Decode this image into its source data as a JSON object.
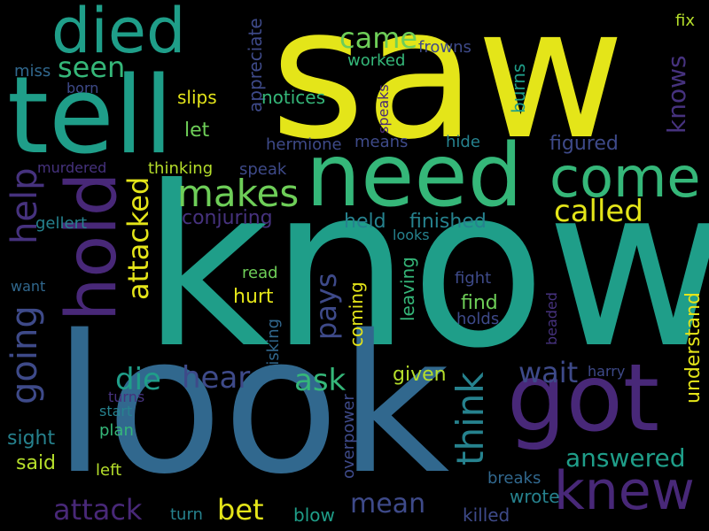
{
  "palette": {
    "yellow": "#e4e519",
    "teal": "#1f9e89",
    "green": "#35b779",
    "lime": "#6ece58",
    "lightgreen": "#b5de2b",
    "blue": "#31688e",
    "steel": "#3e4a89",
    "purple": "#482878",
    "violet": "#46327e",
    "cyan": "#26828e"
  },
  "words": [
    {
      "text": "saw",
      "color": "yellow"
    },
    {
      "text": "know",
      "color": "teal"
    },
    {
      "text": "look",
      "color": "blue"
    },
    {
      "text": "tell",
      "color": "teal"
    },
    {
      "text": "need",
      "color": "green"
    },
    {
      "text": "got",
      "color": "purple"
    },
    {
      "text": "died",
      "color": "teal"
    },
    {
      "text": "come",
      "color": "green"
    },
    {
      "text": "knew",
      "color": "purple"
    },
    {
      "text": "hold",
      "color": "purple"
    },
    {
      "text": "makes",
      "color": "lime"
    },
    {
      "text": "going",
      "color": "steel"
    },
    {
      "text": "help",
      "color": "violet"
    },
    {
      "text": "think",
      "color": "cyan"
    },
    {
      "text": "called",
      "color": "yellow"
    },
    {
      "text": "attacked",
      "color": "yellow"
    },
    {
      "text": "came",
      "color": "lime"
    },
    {
      "text": "seen",
      "color": "green"
    },
    {
      "text": "pays",
      "color": "steel"
    },
    {
      "text": "die",
      "color": "teal"
    },
    {
      "text": "hear",
      "color": "steel"
    },
    {
      "text": "ask",
      "color": "green"
    },
    {
      "text": "wait",
      "color": "steel"
    },
    {
      "text": "attack",
      "color": "purple"
    },
    {
      "text": "bet",
      "color": "yellow"
    },
    {
      "text": "mean",
      "color": "steel"
    },
    {
      "text": "answered",
      "color": "teal"
    },
    {
      "text": "knows",
      "color": "violet"
    },
    {
      "text": "held",
      "color": "cyan"
    },
    {
      "text": "finished",
      "color": "cyan"
    },
    {
      "text": "figured",
      "color": "steel"
    },
    {
      "text": "conjuring",
      "color": "violet"
    },
    {
      "text": "understand",
      "color": "yellow"
    },
    {
      "text": "appreciate",
      "color": "steel"
    },
    {
      "text": "leaving",
      "color": "green"
    },
    {
      "text": "coming",
      "color": "yellow"
    },
    {
      "text": "burns",
      "color": "teal"
    },
    {
      "text": "find",
      "color": "lime"
    },
    {
      "text": "given",
      "color": "lightgreen"
    },
    {
      "text": "hurt",
      "color": "yellow"
    },
    {
      "text": "let",
      "color": "lime"
    },
    {
      "text": "slips",
      "color": "yellow"
    },
    {
      "text": "notices",
      "color": "green"
    },
    {
      "text": "worked",
      "color": "green"
    },
    {
      "text": "frowns",
      "color": "steel"
    },
    {
      "text": "fix",
      "color": "lightgreen"
    },
    {
      "text": "miss",
      "color": "blue"
    },
    {
      "text": "born",
      "color": "steel"
    },
    {
      "text": "hermione",
      "color": "steel"
    },
    {
      "text": "means",
      "color": "steel"
    },
    {
      "text": "hide",
      "color": "cyan"
    },
    {
      "text": "speaks",
      "color": "purple"
    },
    {
      "text": "murdered",
      "color": "violet"
    },
    {
      "text": "thinking",
      "color": "lightgreen"
    },
    {
      "text": "speak",
      "color": "steel"
    },
    {
      "text": "gellert",
      "color": "cyan"
    },
    {
      "text": "looks",
      "color": "cyan"
    },
    {
      "text": "read",
      "color": "lime"
    },
    {
      "text": "fight",
      "color": "steel"
    },
    {
      "text": "holds",
      "color": "steel"
    },
    {
      "text": "want",
      "color": "blue"
    },
    {
      "text": "risking",
      "color": "blue"
    },
    {
      "text": "beaded",
      "color": "violet"
    },
    {
      "text": "harry",
      "color": "steel"
    },
    {
      "text": "turns",
      "color": "violet"
    },
    {
      "text": "start",
      "color": "cyan"
    },
    {
      "text": "plan",
      "color": "green"
    },
    {
      "text": "sight",
      "color": "cyan"
    },
    {
      "text": "said",
      "color": "lightgreen"
    },
    {
      "text": "left",
      "color": "lightgreen"
    },
    {
      "text": "overpower",
      "color": "steel"
    },
    {
      "text": "breaks",
      "color": "blue"
    },
    {
      "text": "wrote",
      "color": "cyan"
    },
    {
      "text": "killed",
      "color": "steel"
    },
    {
      "text": "turn",
      "color": "cyan"
    },
    {
      "text": "blow",
      "color": "teal"
    }
  ]
}
